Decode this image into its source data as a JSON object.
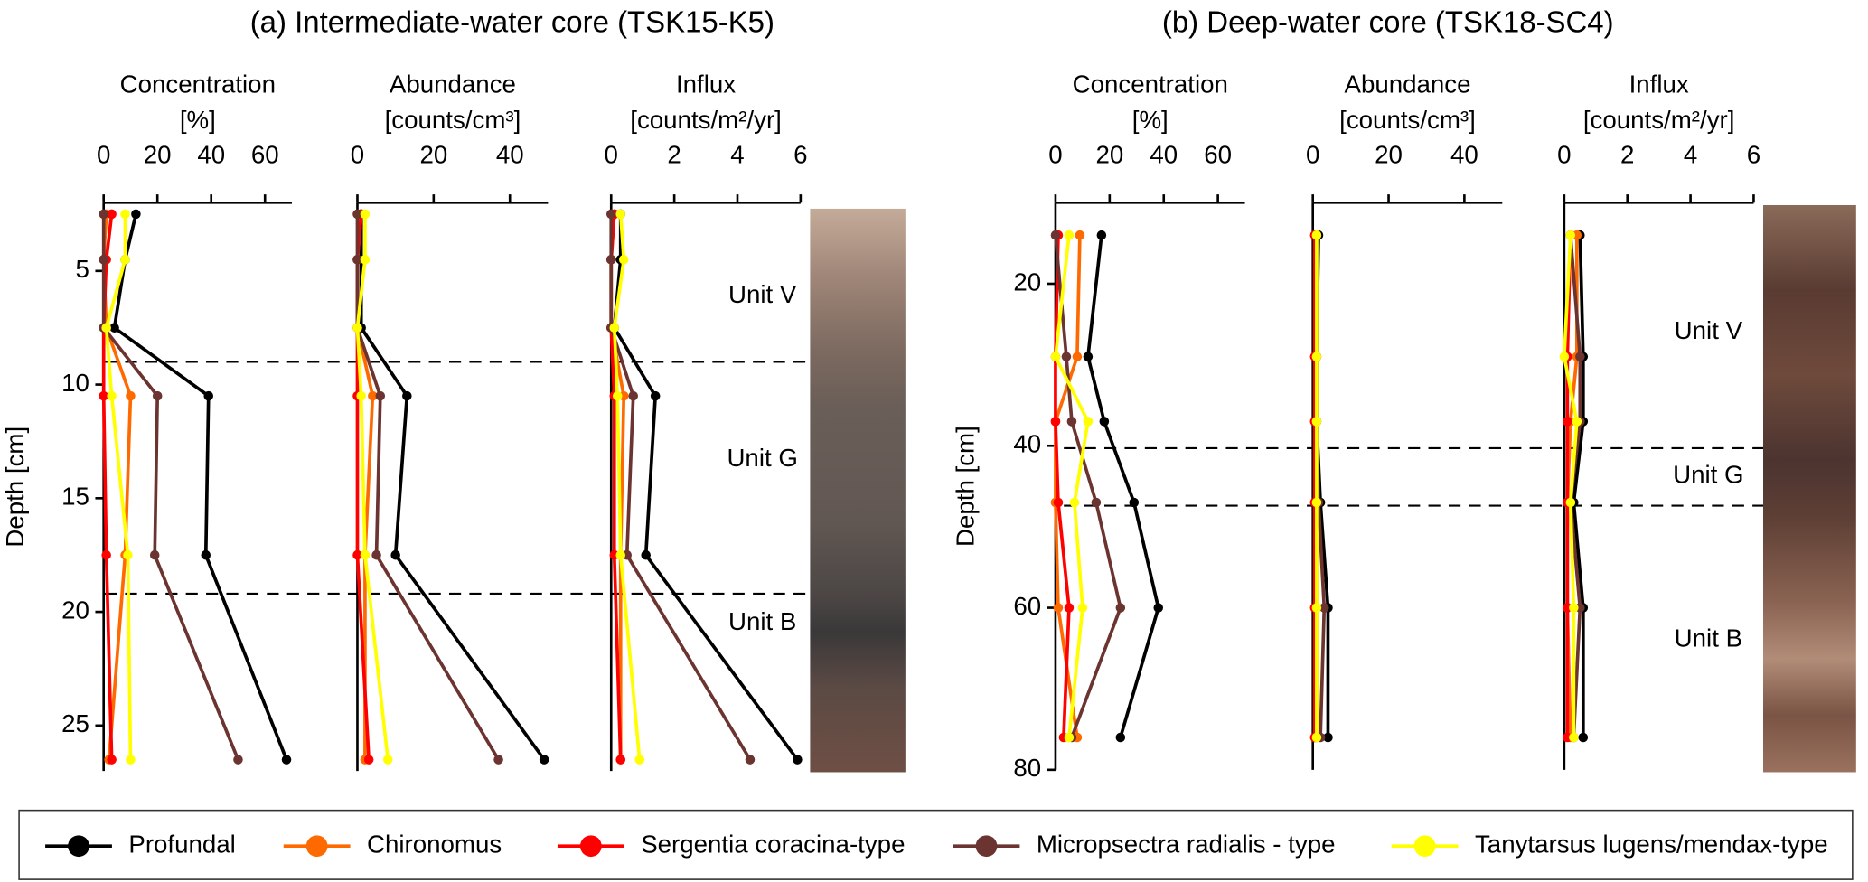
{
  "chart_data": [
    {
      "type": "line",
      "title": "(a) Intermediate-water core (TSK15-K5)",
      "ylabel": "Depth [cm]",
      "ylim": [
        2,
        27
      ],
      "yticks": [
        5,
        10,
        15,
        20,
        25
      ],
      "depths": [
        2.5,
        4.5,
        7.5,
        10.5,
        17.5,
        26.5
      ],
      "boundaries": [
        9.0,
        19.2
      ],
      "units": [
        "Unit V",
        "Unit G",
        "Unit B"
      ],
      "subplots": [
        {
          "xlabel": [
            "Concentration",
            "[%]"
          ],
          "xlim": [
            0,
            70
          ],
          "xticks": [
            0,
            20,
            40,
            60
          ],
          "series": [
            [
              12,
              8,
              4,
              39,
              38,
              68
            ],
            [
              1,
              0,
              1,
              10,
              8,
              2
            ],
            [
              3,
              1,
              0,
              0,
              1,
              3
            ],
            [
              0,
              0,
              0,
              20,
              19,
              50
            ],
            [
              8,
              8,
              1,
              3,
              9,
              10
            ]
          ]
        },
        {
          "xlabel": [
            "Abundance",
            "[counts/cm³]"
          ],
          "xlim": [
            0,
            50
          ],
          "xticks": [
            0,
            20,
            40
          ],
          "series": [
            [
              1,
              1,
              1,
              13,
              10,
              49
            ],
            [
              1,
              0,
              0,
              4,
              2,
              2
            ],
            [
              1,
              0,
              0,
              0,
              0,
              3
            ],
            [
              0,
              0,
              0,
              6,
              5,
              37
            ],
            [
              2,
              2,
              0,
              1,
              2,
              8
            ]
          ]
        },
        {
          "xlabel": [
            "Influx",
            "[counts/m²/yr]"
          ],
          "xlim": [
            0,
            6
          ],
          "xticks": [
            0,
            2,
            4,
            6
          ],
          "series": [
            [
              0.3,
              0.3,
              0.1,
              1.4,
              1.1,
              5.9
            ],
            [
              0.1,
              0,
              0,
              0.4,
              0.3,
              0.3
            ],
            [
              0.1,
              0,
              0,
              0.1,
              0.1,
              0.3
            ],
            [
              0,
              0,
              0,
              0.7,
              0.5,
              4.4
            ],
            [
              0.3,
              0.4,
              0.1,
              0.2,
              0.3,
              0.9
            ]
          ]
        }
      ]
    },
    {
      "type": "line",
      "title": "(b) Deep-water core (TSK18-SC4)",
      "ylabel": "Depth [cm]",
      "ylim": [
        10,
        80
      ],
      "yticks": [
        20,
        40,
        60,
        80
      ],
      "depths": [
        14,
        29,
        37,
        47,
        60,
        76
      ],
      "boundaries": [
        40.3,
        47.4
      ],
      "units": [
        "Unit V",
        "Unit G",
        "Unit B"
      ],
      "subplots": [
        {
          "xlabel": [
            "Concentration",
            "[%]"
          ],
          "xlim": [
            0,
            70
          ],
          "xticks": [
            0,
            20,
            40,
            60
          ],
          "series": [
            [
              17,
              12,
              18,
              29,
              38,
              24
            ],
            [
              9,
              8,
              0,
              0,
              1,
              8
            ],
            [
              1,
              0,
              0,
              1,
              5,
              3
            ],
            [
              0,
              4,
              6,
              15,
              24,
              6
            ],
            [
              5,
              0,
              12,
              7,
              10,
              5
            ]
          ]
        },
        {
          "xlabel": [
            "Abundance",
            "[counts/cm³]"
          ],
          "xlim": [
            0,
            50
          ],
          "xticks": [
            0,
            20,
            40
          ],
          "series": [
            [
              1.5,
              1,
              1,
              2,
              4,
              4
            ],
            [
              1,
              1,
              1,
              1,
              1,
              1
            ],
            [
              0.5,
              0.5,
              0.5,
              0.5,
              0.5,
              0.5
            ],
            [
              1,
              1,
              1,
              1.5,
              3,
              2
            ],
            [
              1,
              1,
              1,
              1,
              1,
              1
            ]
          ]
        },
        {
          "xlabel": [
            "Influx",
            "[counts/m²/yr]"
          ],
          "xlim": [
            0,
            6
          ],
          "xticks": [
            0,
            2,
            4,
            6
          ],
          "series": [
            [
              0.5,
              0.6,
              0.6,
              0.3,
              0.6,
              0.6
            ],
            [
              0.4,
              0.4,
              0.2,
              0.1,
              0.1,
              0.2
            ],
            [
              0.2,
              0.1,
              0.1,
              0.1,
              0.1,
              0.1
            ],
            [
              0.2,
              0.5,
              0.5,
              0.2,
              0.5,
              0.3
            ],
            [
              0.2,
              0,
              0.4,
              0.2,
              0.3,
              0.3
            ]
          ]
        }
      ]
    }
  ],
  "legend": {
    "names": [
      "Profundal",
      "Chironomus",
      "Sergentia coracina-type",
      "Micropsectra radialis  - type",
      "Tanytarsus lugens/mendax-type"
    ],
    "colors": [
      "#000000",
      "#ff6a00",
      "#ff0000",
      "#6b3430",
      "#ffff00"
    ]
  }
}
